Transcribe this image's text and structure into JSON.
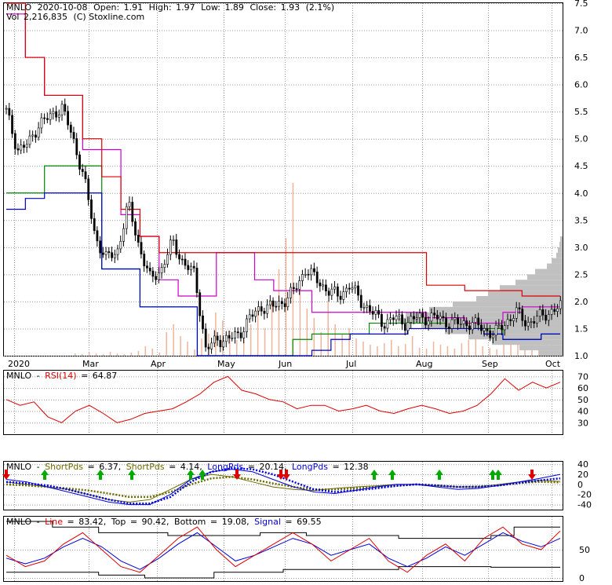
{
  "header": {
    "ticker": "MNLO",
    "date": "2020-10-08",
    "open_label": "Open:",
    "open": "1.91",
    "high_label": "High:",
    "high": "1.97",
    "low_label": "Low:",
    "low": "1.89",
    "close_label": "Close:",
    "close": "1.93",
    "change": "(2.1%)",
    "volume_label": "Vol",
    "volume": "2,216,835",
    "credit": "(C) Stoxline.com"
  },
  "colors": {
    "price": "#000000",
    "channel_20": "#cc00cc",
    "channel_55": "#dd0000",
    "channel_low_blue": "#0000cc",
    "channel_low_green": "#008800",
    "volume": "#f0b49a",
    "profile": "#c0c0c0",
    "rsi": "#dd0000",
    "short_pds": "#6b6b00",
    "long_pds": "#0000dd",
    "arrow_up": "#00aa00",
    "arrow_down": "#dd0000",
    "kd_line": "#dd0000",
    "kd_signal": "#0000dd",
    "kd_band": "#000000"
  },
  "chart_data": [
    {
      "type": "candlestick",
      "panel": "price",
      "x_tick_labels": [
        "2020",
        "Mar",
        "Apr",
        "May",
        "Jun",
        "Jul",
        "Aug",
        "Sep",
        "Oct"
      ],
      "y_tick_labels": [
        "1.0",
        "1.5",
        "2.0",
        "2.5",
        "3.0",
        "3.5",
        "4.0",
        "4.5",
        "5.0",
        "5.5",
        "6.0",
        "6.5",
        "7.0",
        "7.5"
      ],
      "ylim": [
        1.0,
        7.5
      ],
      "grid": true,
      "approx_closes": [
        5.5,
        4.8,
        4.9,
        5.3,
        5.4,
        5.6,
        5.0,
        4.3,
        3.2,
        2.8,
        2.9,
        3.8,
        3.0,
        2.4,
        2.6,
        3.1,
        2.7,
        2.5,
        1.1,
        1.3,
        1.3,
        1.4,
        1.7,
        1.9,
        1.9,
        2.0,
        2.2,
        2.6,
        2.4,
        2.2,
        2.1,
        2.3,
        2.0,
        1.8,
        1.6,
        1.7,
        1.6,
        1.7,
        1.7,
        1.7,
        1.6,
        1.6,
        1.6,
        1.5,
        1.4,
        1.6,
        1.8,
        1.6,
        1.7,
        1.8,
        1.9
      ],
      "series": [
        {
          "name": "",
          "values": [
            4.0,
            4.0,
            4.5,
            4.5,
            4.5,
            2.6,
            2.6,
            1.9,
            1.9,
            1.9,
            1.0,
            1.0,
            1.0,
            1.0,
            1.0,
            1.3,
            1.4,
            1.4,
            1.4,
            1.6,
            1.6,
            1.6,
            1.6,
            1.5,
            1.5,
            1.5,
            1.3,
            1.3,
            1.4,
            1.4
          ]
        },
        {
          "name": "",
          "values": [
            3.7,
            3.9,
            4.0,
            4.0,
            4.0,
            2.6,
            2.6,
            1.9,
            1.9,
            1.9,
            1.0,
            1.0,
            1.0,
            1.0,
            1.0,
            1.0,
            1.1,
            1.3,
            1.4,
            1.4,
            1.4,
            1.5,
            1.5,
            1.5,
            1.5,
            1.4,
            1.3,
            1.3,
            1.4,
            1.4
          ]
        },
        {
          "name": "",
          "values": [
            7.3,
            6.5,
            5.8,
            5.8,
            4.8,
            4.8,
            3.6,
            3.2,
            2.4,
            2.1,
            2.1,
            2.9,
            2.9,
            2.4,
            2.2,
            2.2,
            1.8,
            1.8,
            1.8,
            1.8,
            1.8,
            1.8,
            1.7,
            1.7,
            1.6,
            1.6,
            1.8,
            1.9,
            1.9,
            1.95
          ]
        },
        {
          "name": "",
          "values": [
            7.5,
            6.5,
            5.8,
            5.8,
            5.0,
            4.3,
            3.7,
            3.2,
            2.9,
            2.9,
            2.9,
            2.9,
            2.9,
            2.9,
            2.9,
            2.9,
            2.9,
            2.9,
            2.9,
            2.9,
            2.9,
            2.9,
            2.3,
            2.3,
            2.2,
            2.2,
            2.2,
            2.1,
            2.1,
            2.1
          ]
        }
      ]
    },
    {
      "type": "line",
      "panel": "rsi",
      "title": "RSI(14)",
      "value": "64.87",
      "y_tick_labels": [
        "70",
        "60",
        "50",
        "40",
        "30"
      ],
      "ylim": [
        20,
        75
      ],
      "values": [
        50,
        45,
        48,
        35,
        30,
        40,
        45,
        38,
        30,
        33,
        38,
        40,
        42,
        48,
        55,
        65,
        70,
        58,
        55,
        50,
        48,
        42,
        45,
        45,
        40,
        42,
        45,
        40,
        38,
        42,
        45,
        42,
        38,
        40,
        45,
        55,
        68,
        58,
        65,
        60,
        65
      ]
    },
    {
      "type": "line",
      "panel": "pds",
      "y_tick_labels": [
        "40",
        "20",
        "0",
        "-20",
        "-40"
      ],
      "ylim": [
        -50,
        45
      ],
      "series": [
        {
          "name": "ShortPds",
          "value": "6.37",
          "values": [
            5,
            0,
            -5,
            -10,
            -20,
            -30,
            -35,
            -30,
            -10,
            10,
            20,
            15,
            5,
            -5,
            -10,
            -12,
            -8,
            -5,
            -3,
            0,
            0,
            -3,
            -5,
            -5,
            0,
            5,
            8,
            6
          ]
        },
        {
          "name": "ShortPds",
          "value": "4.14",
          "values": [
            0,
            -2,
            -5,
            -8,
            -12,
            -18,
            -25,
            -25,
            -15,
            0,
            12,
            15,
            10,
            2,
            -5,
            -10,
            -10,
            -8,
            -5,
            -2,
            0,
            -2,
            -5,
            -4,
            -2,
            3,
            5,
            4
          ]
        },
        {
          "name": "LongPds",
          "value": "20.14",
          "values": [
            10,
            5,
            -5,
            -15,
            -25,
            -35,
            -40,
            -40,
            -20,
            10,
            25,
            30,
            25,
            10,
            -5,
            -15,
            -18,
            -12,
            -5,
            0,
            0,
            -5,
            -10,
            -8,
            -2,
            5,
            12,
            20
          ]
        },
        {
          "name": "LongPds",
          "value": "12.38",
          "values": [
            5,
            2,
            -2,
            -10,
            -20,
            -30,
            -38,
            -38,
            -25,
            5,
            25,
            32,
            30,
            20,
            5,
            -10,
            -15,
            -12,
            -8,
            -3,
            0,
            -2,
            -5,
            -5,
            -2,
            3,
            8,
            12
          ]
        }
      ],
      "buy_arrows": 9,
      "sell_arrows": 4
    },
    {
      "type": "line",
      "panel": "stochastic",
      "y_tick_labels": [
        "50",
        "0"
      ],
      "ylim": [
        0,
        100
      ],
      "series": [
        {
          "name": "Line",
          "value": "83.42",
          "values": [
            40,
            20,
            30,
            60,
            80,
            50,
            20,
            10,
            40,
            70,
            90,
            50,
            20,
            40,
            60,
            80,
            60,
            30,
            50,
            70,
            30,
            10,
            40,
            60,
            30,
            70,
            90,
            60,
            50,
            83
          ]
        },
        {
          "name": "Top",
          "value": "90.42",
          "values": [
            100,
            100,
            90,
            90,
            80,
            80,
            80,
            75,
            75,
            75,
            75,
            80,
            80,
            75,
            75,
            75,
            75,
            70,
            70,
            70,
            70,
            75,
            90,
            90,
            90
          ]
        },
        {
          "name": "Bottom",
          "value": "19.08",
          "values": [
            10,
            10,
            10,
            10,
            5,
            5,
            0,
            0,
            0,
            10,
            10,
            10,
            15,
            15,
            15,
            15,
            15,
            20,
            20,
            20,
            20,
            19,
            19,
            19,
            19
          ]
        },
        {
          "name": "Signal",
          "value": "69.55",
          "values": [
            35,
            25,
            35,
            55,
            70,
            55,
            30,
            15,
            35,
            60,
            80,
            55,
            30,
            40,
            55,
            70,
            60,
            40,
            50,
            60,
            35,
            20,
            35,
            55,
            40,
            60,
            80,
            65,
            55,
            70
          ]
        }
      ]
    }
  ]
}
